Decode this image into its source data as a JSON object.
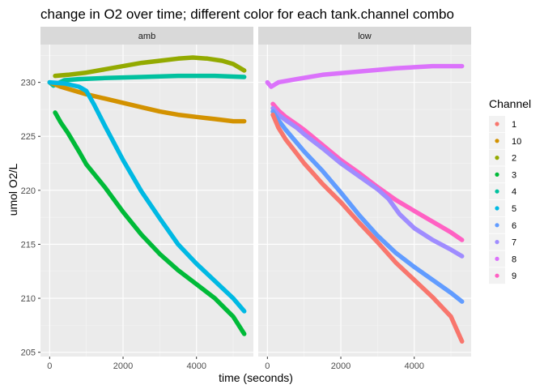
{
  "chart_data": {
    "type": "scatter",
    "title": "change in O2 over time;  different color for each tank.channel combo",
    "xlabel": "time (seconds)",
    "ylabel": "umol O2/L",
    "xlim": [
      -250,
      5550
    ],
    "ylim": [
      204.6,
      233.5
    ],
    "x_ticks": [
      0,
      2000,
      4000
    ],
    "y_ticks": [
      205,
      210,
      215,
      220,
      225,
      230
    ],
    "grid": true,
    "legend": {
      "title": "Channel",
      "placement": "right",
      "entries": [
        {
          "label": "1",
          "color": "#F8766D"
        },
        {
          "label": "10",
          "color": "#D39200"
        },
        {
          "label": "2",
          "color": "#93AA00"
        },
        {
          "label": "3",
          "color": "#00BA38"
        },
        {
          "label": "4",
          "color": "#00C19F"
        },
        {
          "label": "5",
          "color": "#00B9E3"
        },
        {
          "label": "6",
          "color": "#619CFF"
        },
        {
          "label": "7",
          "color": "#9F8CFF"
        },
        {
          "label": "8",
          "color": "#DB72FB"
        },
        {
          "label": "9",
          "color": "#FF61C3"
        }
      ]
    },
    "panels": [
      {
        "name": "amb",
        "series": [
          {
            "name": "4",
            "color": "#00C19F",
            "x": [
              0,
              100,
              400,
              800,
              1500,
              2500,
              3500,
              4500,
              5300
            ],
            "y": [
              230.0,
              229.7,
              230.2,
              230.3,
              230.4,
              230.5,
              230.6,
              230.6,
              230.5
            ]
          },
          {
            "name": "2",
            "color": "#93AA00",
            "x": [
              150,
              500,
              1000,
              1500,
              2000,
              2500,
              3000,
              3500,
              3900,
              4300,
              4700,
              5000,
              5300
            ],
            "y": [
              230.6,
              230.7,
              230.9,
              231.2,
              231.5,
              231.8,
              232.0,
              232.2,
              232.3,
              232.2,
              232.0,
              231.7,
              231.1
            ]
          },
          {
            "name": "10",
            "color": "#D39200",
            "x": [
              0,
              300,
              700,
              1000,
              1500,
              2000,
              2500,
              3000,
              3500,
              4000,
              4500,
              5000,
              5300
            ],
            "y": [
              230.0,
              229.6,
              229.2,
              228.9,
              228.5,
              228.1,
              227.7,
              227.3,
              227.0,
              226.8,
              226.6,
              226.4,
              226.4
            ]
          },
          {
            "name": "5",
            "color": "#00B9E3",
            "x": [
              0,
              400,
              800,
              1000,
              1200,
              1500,
              2000,
              2500,
              3000,
              3500,
              4000,
              4500,
              5000,
              5300
            ],
            "y": [
              230.0,
              229.9,
              229.6,
              229.2,
              228.0,
              226.0,
              222.8,
              219.9,
              217.4,
              215.0,
              213.2,
              211.6,
              210.0,
              208.8
            ]
          },
          {
            "name": "3",
            "color": "#00BA38",
            "x": [
              150,
              300,
              500,
              800,
              1000,
              1500,
              2000,
              2500,
              3000,
              3500,
              4000,
              4500,
              5000,
              5300
            ],
            "y": [
              227.2,
              226.3,
              225.3,
              223.6,
              222.4,
              220.3,
              218.0,
              215.9,
              214.1,
              212.6,
              211.3,
              210.0,
              208.3,
              206.7
            ]
          }
        ]
      },
      {
        "name": "low",
        "series": [
          {
            "name": "8",
            "color": "#DB72FB",
            "x": [
              0,
              100,
              300,
              800,
              1500,
              2500,
              3500,
              4500,
              5300
            ],
            "y": [
              230.0,
              229.6,
              230.0,
              230.3,
              230.7,
              231.0,
              231.3,
              231.5,
              231.5
            ]
          },
          {
            "name": "9",
            "color": "#FF61C3",
            "x": [
              150,
              300,
              500,
              800,
              1000,
              1500,
              2000,
              2500,
              3000,
              3500,
              4000,
              4500,
              5000,
              5300
            ],
            "y": [
              228.0,
              227.4,
              226.8,
              226.1,
              225.6,
              224.2,
              222.8,
              221.6,
              220.3,
              219.1,
              218.1,
              217.1,
              216.1,
              215.4
            ]
          },
          {
            "name": "7",
            "color": "#9F8CFF",
            "x": [
              150,
              300,
              500,
              800,
              1000,
              1500,
              2000,
              2500,
              3000,
              3300,
              3600,
              4000,
              4500,
              5000,
              5300
            ],
            "y": [
              227.6,
              227.0,
              226.5,
              225.8,
              225.2,
              223.9,
              222.5,
              221.3,
              220.1,
              219.2,
              217.8,
              216.5,
              215.4,
              214.5,
              213.9
            ]
          },
          {
            "name": "6",
            "color": "#619CFF",
            "x": [
              150,
              300,
              500,
              800,
              1000,
              1500,
              2000,
              2500,
              3000,
              3500,
              4000,
              4500,
              5000,
              5300
            ],
            "y": [
              227.3,
              226.5,
              225.6,
              224.4,
              223.6,
              221.8,
              219.8,
              217.7,
              215.8,
              214.2,
              212.9,
              211.7,
              210.5,
              209.7
            ]
          },
          {
            "name": "1",
            "color": "#F8766D",
            "x": [
              150,
              300,
              500,
              800,
              1000,
              1500,
              2000,
              2500,
              3000,
              3500,
              4000,
              4500,
              5000,
              5300
            ],
            "y": [
              227.0,
              225.8,
              224.7,
              223.4,
              222.5,
              220.6,
              218.9,
              217.0,
              215.2,
              213.3,
              211.7,
              210.1,
              208.3,
              206.0
            ]
          }
        ]
      }
    ]
  }
}
